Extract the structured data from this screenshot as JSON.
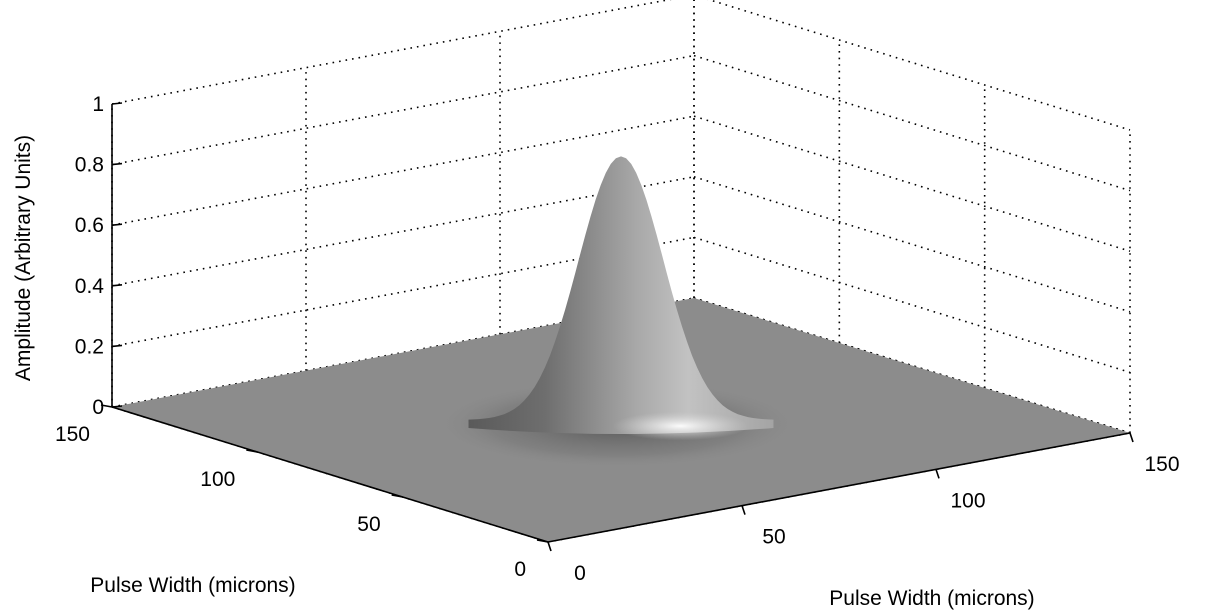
{
  "chart_data": {
    "type": "surface",
    "title": "",
    "xlabel": "Pulse Width (microns)",
    "ylabel": "Pulse Width (microns)",
    "zlabel": "Amplitude (Arbitrary Units)",
    "xlim": [
      0,
      150
    ],
    "ylim": [
      0,
      150
    ],
    "zlim": [
      0,
      1
    ],
    "x_ticks": [
      0,
      50,
      100,
      150
    ],
    "y_ticks": [
      0,
      50,
      100,
      150
    ],
    "z_ticks": [
      0,
      0.2,
      0.4,
      0.6,
      0.8,
      1
    ],
    "x_tick_labels": [
      "0",
      "50",
      "100",
      "150"
    ],
    "y_tick_labels": [
      "0",
      "50",
      "100",
      "150"
    ],
    "z_tick_labels": [
      "0",
      "0.2",
      "0.4",
      "0.6",
      "0.8",
      "1"
    ],
    "grid": true,
    "function": "gaussian",
    "peak": {
      "x": 75,
      "y": 75,
      "amplitude": 0.87
    },
    "sigma": {
      "x": 8,
      "y": 8
    },
    "colormap": "gray",
    "surface_color": "#8c8c8c"
  }
}
